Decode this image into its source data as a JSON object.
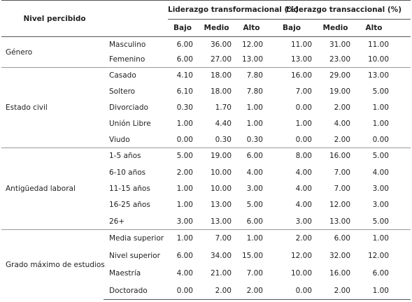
{
  "table": {
    "header": {
      "label": "Nivel percibido",
      "groups": [
        {
          "title": "Liderazgo transformacional (%)",
          "levels": [
            "Bajo",
            "Medio",
            "Alto"
          ]
        },
        {
          "title": "Liderazgo transaccional (%)",
          "levels": [
            "Bajo",
            "Medio",
            "Alto"
          ]
        }
      ]
    },
    "groups": [
      {
        "label": "Género",
        "rows": [
          {
            "label": "Masculino",
            "values": [
              "6.00",
              "36.00",
              "12.00",
              "11.00",
              "31.00",
              "11.00"
            ]
          },
          {
            "label": "Femenino",
            "values": [
              "6.00",
              "27.00",
              "13.00",
              "13.00",
              "23.00",
              "10.00"
            ]
          }
        ]
      },
      {
        "label": "Estado civil",
        "rows": [
          {
            "label": "Casado",
            "values": [
              "4.10",
              "18.00",
              "7.80",
              "16.00",
              "29.00",
              "13.00"
            ]
          },
          {
            "label": "Soltero",
            "values": [
              "6.10",
              "18.00",
              "7.80",
              "7.00",
              "19.00",
              "5.00"
            ]
          },
          {
            "label": "Divorciado",
            "values": [
              "0.30",
              "1.70",
              "1.00",
              "0.00",
              "2.00",
              "1.00"
            ]
          },
          {
            "label": "Unión Libre",
            "values": [
              "1.00",
              "4.40",
              "1.00",
              "1.00",
              "4.00",
              "1.00"
            ]
          },
          {
            "label": "Viudo",
            "values": [
              "0.00",
              "0.30",
              "0.30",
              "0.00",
              "2.00",
              "0.00"
            ]
          }
        ]
      },
      {
        "label": "Antigüedad laboral",
        "rows": [
          {
            "label": "1-5 años",
            "values": [
              "5.00",
              "19.00",
              "6.00",
              "8.00",
              "16.00",
              "5.00"
            ]
          },
          {
            "label": "6-10 años",
            "values": [
              "2.00",
              "10.00",
              "4.00",
              "4.00",
              "7.00",
              "4.00"
            ]
          },
          {
            "label": "11-15 años",
            "values": [
              "1.00",
              "10.00",
              "3.00",
              "4.00",
              "7.00",
              "3.00"
            ]
          },
          {
            "label": "16-25 años",
            "values": [
              "1.00",
              "13.00",
              "5.00",
              "4.00",
              "12.00",
              "3.00"
            ]
          },
          {
            "label": "26+",
            "values": [
              "3.00",
              "13.00",
              "6.00",
              "3.00",
              "13.00",
              "5.00"
            ]
          }
        ]
      },
      {
        "label": "Grado máximo de estudios",
        "rows": [
          {
            "label": "Media superior",
            "values": [
              "1.00",
              "7.00",
              "1.00",
              "2.00",
              "6.00",
              "1.00"
            ]
          },
          {
            "label": "Nivel superior",
            "values": [
              "6.00",
              "34.00",
              "15.00",
              "12.00",
              "32.00",
              "12.00"
            ]
          },
          {
            "label": "Maestría",
            "values": [
              "4.00",
              "21.00",
              "7.00",
              "10.00",
              "16.00",
              "6.00"
            ]
          },
          {
            "label": "Doctorado",
            "values": [
              "0.00",
              "2.00",
              "2.00",
              "0.00",
              "2.00",
              "1.00"
            ]
          }
        ]
      }
    ]
  }
}
